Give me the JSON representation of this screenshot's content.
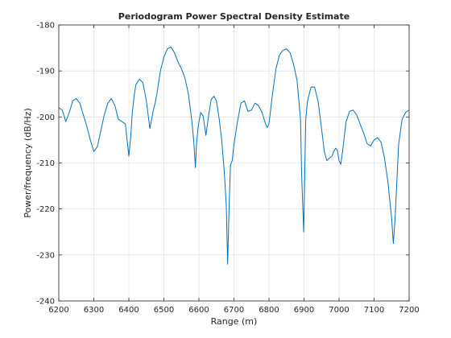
{
  "chart_data": {
    "type": "line",
    "title": "Periodogram Power Spectral Density Estimate",
    "xlabel": "Range (m)",
    "ylabel": "Power/frequency (dB/Hz)",
    "xlim": [
      6200,
      7200
    ],
    "ylim": [
      -240,
      -180
    ],
    "xticks": [
      6200,
      6300,
      6400,
      6500,
      6600,
      6700,
      6800,
      6900,
      7000,
      7100,
      7200
    ],
    "yticks": [
      -240,
      -230,
      -220,
      -210,
      -200,
      -190,
      -180
    ],
    "xtick_labels": [
      "6200",
      "6300",
      "6400",
      "6500",
      "6600",
      "6700",
      "6800",
      "6900",
      "7000",
      "7100",
      "7200"
    ],
    "ytick_labels": [
      "-240",
      "-230",
      "-220",
      "-210",
      "-200",
      "-190",
      "-180"
    ],
    "grid": true,
    "line_color": "#0072BD",
    "series": [
      {
        "x": [
          6200,
          6210,
          6220,
          6230,
          6240,
          6250,
          6260,
          6270,
          6280,
          6290,
          6300,
          6310,
          6320,
          6330,
          6340,
          6350,
          6360,
          6370,
          6380,
          6390,
          6400,
          6405,
          6410,
          6415,
          6420,
          6430,
          6440,
          6450,
          6460,
          6465,
          6470,
          6475,
          6480,
          6490,
          6500,
          6510,
          6520,
          6530,
          6540,
          6550,
          6560,
          6570,
          6580,
          6585,
          6590,
          6593,
          6598,
          6605,
          6612,
          6620,
          6628,
          6635,
          6643,
          6650,
          6658,
          6665,
          6672,
          6678,
          6682,
          6686,
          6690,
          6695,
          6700,
          6710,
          6720,
          6730,
          6740,
          6750,
          6760,
          6770,
          6780,
          6790,
          6795,
          6800,
          6810,
          6820,
          6830,
          6840,
          6850,
          6860,
          6870,
          6880,
          6890,
          6893,
          6896,
          6899,
          6905,
          6910,
          6920,
          6930,
          6940,
          6950,
          6958,
          6965,
          6972,
          6980,
          6985,
          6990,
          6995,
          7000,
          7005,
          7010,
          7020,
          7030,
          7040,
          7050,
          7060,
          7070,
          7080,
          7090,
          7100,
          7110,
          7120,
          7130,
          7140,
          7150,
          7155,
          7160,
          7170,
          7180,
          7190,
          7200
        ],
        "y": [
          -198,
          -198.5,
          -201,
          -199,
          -196.5,
          -196,
          -197,
          -199.5,
          -202,
          -205,
          -207.5,
          -206.5,
          -203,
          -199.5,
          -197,
          -196,
          -197.5,
          -200.5,
          -201,
          -201.5,
          -208.5,
          -204.5,
          -199,
          -195.5,
          -193,
          -191.8,
          -192.5,
          -196.5,
          -202.5,
          -200.5,
          -198.5,
          -197,
          -195,
          -190,
          -187,
          -185.2,
          -184.8,
          -186,
          -188,
          -189.5,
          -191.5,
          -195,
          -201,
          -205,
          -211,
          -206,
          -202,
          -199,
          -199.8,
          -204,
          -199.5,
          -196.2,
          -195.5,
          -196.5,
          -200.5,
          -205,
          -211.5,
          -219,
          -232,
          -220,
          -210.5,
          -209.5,
          -206,
          -201,
          -197,
          -196.5,
          -198.8,
          -198.5,
          -197,
          -197.5,
          -199,
          -201.5,
          -202.3,
          -201.5,
          -195,
          -189.5,
          -186.5,
          -185.5,
          -185.2,
          -186,
          -188.5,
          -192,
          -200.5,
          -212,
          -218.5,
          -225,
          -200.5,
          -196.5,
          -193.5,
          -193.5,
          -196.5,
          -202.5,
          -207.5,
          -209.5,
          -209,
          -208.5,
          -207.5,
          -206.8,
          -207.2,
          -209.5,
          -210.3,
          -207.5,
          -201,
          -198.8,
          -198.5,
          -199.5,
          -201.5,
          -203.5,
          -205.8,
          -206.3,
          -205,
          -204.5,
          -205.5,
          -209,
          -214.5,
          -222,
          -227.5,
          -222,
          -206,
          -200.5,
          -199,
          -198.5
        ]
      }
    ]
  }
}
